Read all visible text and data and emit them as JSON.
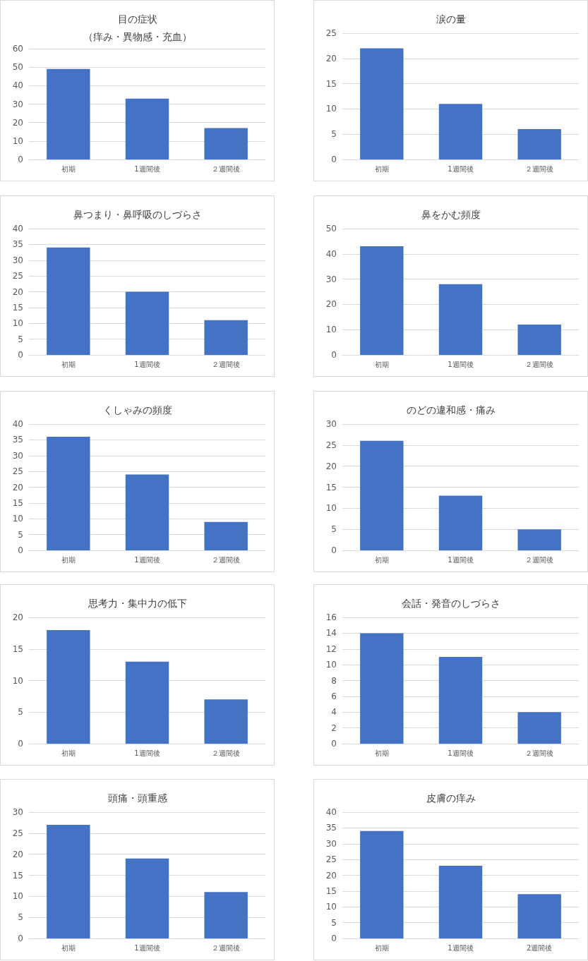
{
  "chart_data": [
    {
      "type": "bar",
      "title": "目の症状",
      "subtitle": "（痒み・異物感・充血）",
      "categories": [
        "初期",
        "1週間後",
        "２週間後"
      ],
      "values": [
        49,
        33,
        17
      ],
      "color": "#4472c4",
      "ylim": [
        0,
        60
      ],
      "yticks": [
        0,
        10,
        20,
        30,
        40,
        50,
        60
      ],
      "grid": "y"
    },
    {
      "type": "bar",
      "title": "涙の量",
      "categories": [
        "初期",
        "1週間後",
        "２週間後"
      ],
      "values": [
        22,
        11,
        6
      ],
      "color": "#4472c4",
      "ylim": [
        0,
        25
      ],
      "yticks": [
        0,
        5,
        10,
        15,
        20,
        25
      ],
      "grid": "y"
    },
    {
      "type": "bar",
      "title": "鼻つまり・鼻呼吸のしづらさ",
      "categories": [
        "初期",
        "1週間後",
        "２週間後"
      ],
      "values": [
        34,
        20,
        11
      ],
      "color": "#4472c4",
      "ylim": [
        0,
        40
      ],
      "yticks": [
        0,
        5,
        10,
        15,
        20,
        25,
        30,
        35,
        40
      ],
      "grid": "y"
    },
    {
      "type": "bar",
      "title": "鼻をかむ頻度",
      "categories": [
        "初期",
        "1週間後",
        "２週間後"
      ],
      "values": [
        43,
        28,
        12
      ],
      "color": "#4472c4",
      "ylim": [
        0,
        50
      ],
      "yticks": [
        0,
        10,
        20,
        30,
        40,
        50
      ],
      "grid": "y"
    },
    {
      "type": "bar",
      "title": "くしゃみの頻度",
      "categories": [
        "初期",
        "1週間後",
        "２週間後"
      ],
      "values": [
        36,
        24,
        9
      ],
      "color": "#4472c4",
      "ylim": [
        0,
        40
      ],
      "yticks": [
        0,
        5,
        10,
        15,
        20,
        25,
        30,
        35,
        40
      ],
      "grid": "y"
    },
    {
      "type": "bar",
      "title": "のどの違和感・痛み",
      "categories": [
        "初期",
        "1週間後",
        "２週間後"
      ],
      "values": [
        26,
        13,
        5
      ],
      "color": "#4472c4",
      "ylim": [
        0,
        30
      ],
      "yticks": [
        0,
        5,
        10,
        15,
        20,
        25,
        30
      ],
      "grid": "y"
    },
    {
      "type": "bar",
      "title": "思考力・集中力の低下",
      "categories": [
        "初期",
        "1週間後",
        "２週間後"
      ],
      "values": [
        18,
        13,
        7
      ],
      "color": "#4472c4",
      "ylim": [
        0,
        20
      ],
      "yticks": [
        0,
        5,
        10,
        15,
        20
      ],
      "grid": "y"
    },
    {
      "type": "bar",
      "title": "会話・発音のしづらさ",
      "categories": [
        "初期",
        "1週間後",
        "２週間後"
      ],
      "values": [
        14,
        11,
        4
      ],
      "color": "#4472c4",
      "ylim": [
        0,
        16
      ],
      "yticks": [
        0,
        2,
        4,
        6,
        8,
        10,
        12,
        14,
        16
      ],
      "grid": "y"
    },
    {
      "type": "bar",
      "title": "頭痛・頭重感",
      "categories": [
        "初期",
        "1週間後",
        "２週間後"
      ],
      "values": [
        27,
        19,
        11
      ],
      "color": "#4472c4",
      "ylim": [
        0,
        30
      ],
      "yticks": [
        0,
        5,
        10,
        15,
        20,
        25,
        30
      ],
      "grid": "y"
    },
    {
      "type": "bar",
      "title": "皮膚の痒み",
      "categories": [
        "初期",
        "1週間後",
        "2週間後"
      ],
      "values": [
        34,
        23,
        14
      ],
      "color": "#4472c4",
      "ylim": [
        0,
        40
      ],
      "yticks": [
        0,
        5,
        10,
        15,
        20,
        25,
        30,
        35,
        40
      ],
      "grid": "y"
    }
  ]
}
